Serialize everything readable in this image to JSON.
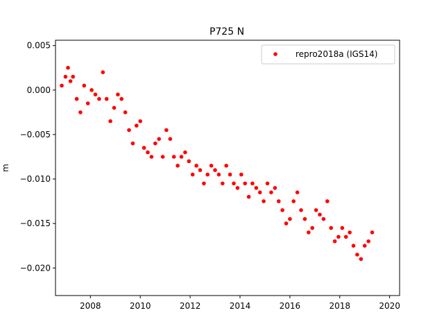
{
  "chart_data": {
    "type": "scatter",
    "title": "P725 N",
    "xlabel": "",
    "ylabel": "m",
    "x_range": [
      2006.6,
      2020.4
    ],
    "y_range": [
      -0.0231,
      0.0056
    ],
    "x_ticks": [
      2008,
      2010,
      2012,
      2014,
      2016,
      2018,
      2020
    ],
    "y_ticks": [
      0.005,
      0.0,
      -0.005,
      -0.01,
      -0.015,
      -0.02
    ],
    "y_tick_labels": [
      "0.005",
      "0.000",
      "−0.005",
      "−0.010",
      "−0.015",
      "−0.020"
    ],
    "grid": false,
    "legend_position": "top-right",
    "series": [
      {
        "name": "repro2018a (IGS14)",
        "color": "#ff0000",
        "marker": "circle",
        "x": [
          2006.85,
          2007.0,
          2007.1,
          2007.2,
          2007.3,
          2007.45,
          2007.6,
          2007.75,
          2007.9,
          2008.05,
          2008.2,
          2008.35,
          2008.5,
          2008.65,
          2008.8,
          2008.95,
          2009.1,
          2009.25,
          2009.4,
          2009.55,
          2009.7,
          2009.85,
          2010.0,
          2010.15,
          2010.3,
          2010.45,
          2010.6,
          2010.75,
          2010.9,
          2011.05,
          2011.2,
          2011.35,
          2011.5,
          2011.65,
          2011.8,
          2011.95,
          2012.1,
          2012.25,
          2012.4,
          2012.55,
          2012.7,
          2012.85,
          2013.0,
          2013.15,
          2013.3,
          2013.45,
          2013.6,
          2013.75,
          2013.9,
          2014.05,
          2014.2,
          2014.35,
          2014.5,
          2014.65,
          2014.8,
          2014.95,
          2015.1,
          2015.25,
          2015.4,
          2015.55,
          2015.7,
          2015.85,
          2016.0,
          2016.15,
          2016.3,
          2016.45,
          2016.6,
          2016.75,
          2016.9,
          2017.05,
          2017.2,
          2017.35,
          2017.5,
          2017.65,
          2017.8,
          2017.95,
          2018.1,
          2018.25,
          2018.4,
          2018.55,
          2018.7,
          2018.85,
          2019.0,
          2019.15,
          2019.3
        ],
        "y": [
          0.0005,
          0.0015,
          0.0025,
          0.001,
          0.0015,
          -0.001,
          -0.0025,
          0.0005,
          -0.0015,
          0.0,
          -0.0005,
          -0.001,
          0.002,
          -0.001,
          -0.0035,
          -0.002,
          -0.0005,
          -0.001,
          -0.0025,
          -0.0045,
          -0.006,
          -0.004,
          -0.0035,
          -0.0065,
          -0.007,
          -0.0075,
          -0.006,
          -0.0055,
          -0.0075,
          -0.0045,
          -0.0055,
          -0.0075,
          -0.0085,
          -0.0075,
          -0.007,
          -0.008,
          -0.0095,
          -0.0085,
          -0.009,
          -0.0105,
          -0.0095,
          -0.0085,
          -0.009,
          -0.0095,
          -0.0105,
          -0.0085,
          -0.0095,
          -0.0105,
          -0.011,
          -0.0095,
          -0.0105,
          -0.012,
          -0.0105,
          -0.011,
          -0.0115,
          -0.0125,
          -0.0105,
          -0.0115,
          -0.011,
          -0.0125,
          -0.0135,
          -0.015,
          -0.0145,
          -0.0125,
          -0.0115,
          -0.0135,
          -0.0145,
          -0.016,
          -0.0155,
          -0.0135,
          -0.014,
          -0.0145,
          -0.0125,
          -0.0155,
          -0.017,
          -0.0165,
          -0.0155,
          -0.0165,
          -0.016,
          -0.0175,
          -0.0185,
          -0.019,
          -0.0175,
          -0.017,
          -0.016
        ]
      }
    ]
  }
}
